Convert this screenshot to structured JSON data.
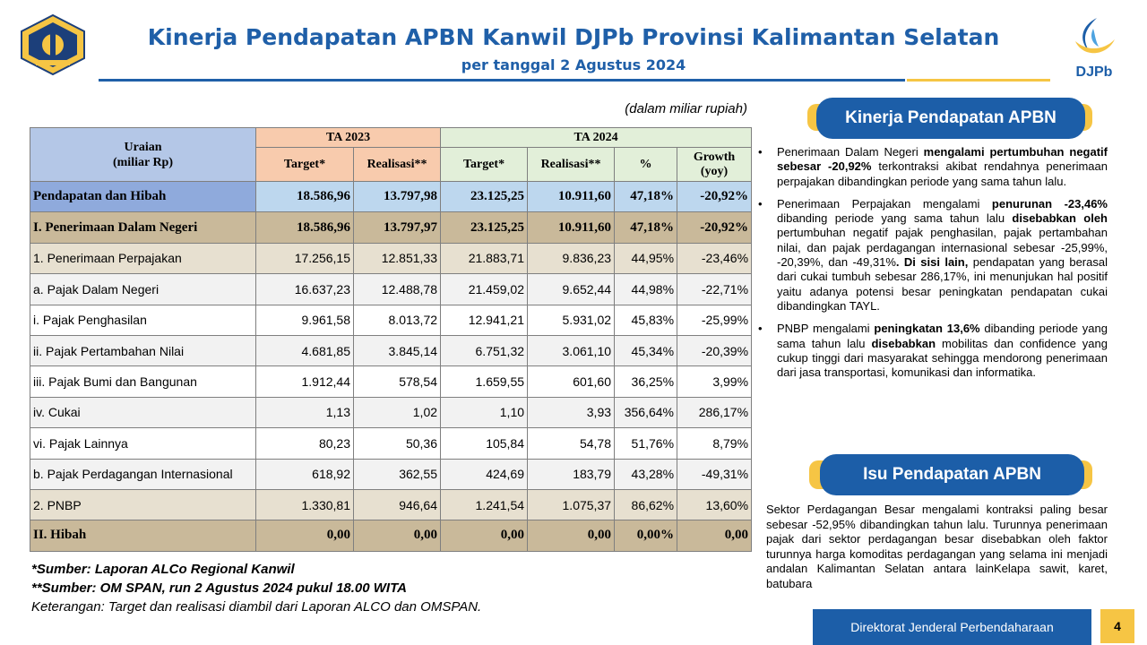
{
  "header": {
    "title": "Kinerja Pendapatan APBN Kanwil DJPb Provinsi Kalimantan Selatan",
    "subtitle": "per tanggal 2 Agustus 2024",
    "brand": "DJPb"
  },
  "table": {
    "unit_note": "(dalam miliar rupiah)",
    "col_uraian": "Uraian\n(miliar Rp)",
    "group_2023": "TA 2023",
    "group_2024": "TA 2024",
    "col_target_2023": "Target*",
    "col_realisasi_2023": "Realisasi**",
    "col_target_2024": "Target*",
    "col_realisasi_2024": "Realisasi**",
    "col_pct": "%",
    "col_growth": "Growth\n(yoy)",
    "rows": [
      {
        "label": "Pendapatan dan Hibah",
        "t23": "18.586,96",
        "r23": "13.797,98",
        "t24": "23.125,25",
        "r24": "10.911,60",
        "pct": "47,18%",
        "growth": "-20,92%"
      },
      {
        "label": "I. Penerimaan Dalam Negeri",
        "t23": "18.586,96",
        "r23": "13.797,97",
        "t24": "23.125,25",
        "r24": "10.911,60",
        "pct": "47,18%",
        "growth": "-20,92%"
      },
      {
        "label": "1. Penerimaan Perpajakan",
        "t23": "17.256,15",
        "r23": "12.851,33",
        "t24": "21.883,71",
        "r24": "9.836,23",
        "pct": "44,95%",
        "growth": "-23,46%"
      },
      {
        "label": "a. Pajak Dalam Negeri",
        "t23": "16.637,23",
        "r23": "12.488,78",
        "t24": "21.459,02",
        "r24": "9.652,44",
        "pct": "44,98%",
        "growth": "-22,71%"
      },
      {
        "label": "i. Pajak Penghasilan",
        "t23": "9.961,58",
        "r23": "8.013,72",
        "t24": "12.941,21",
        "r24": "5.931,02",
        "pct": "45,83%",
        "growth": "-25,99%"
      },
      {
        "label": "ii. Pajak Pertambahan Nilai",
        "t23": "4.681,85",
        "r23": "3.845,14",
        "t24": "6.751,32",
        "r24": "3.061,10",
        "pct": "45,34%",
        "growth": "-20,39%"
      },
      {
        "label": "iii. Pajak Bumi dan Bangunan",
        "t23": "1.912,44",
        "r23": "578,54",
        "t24": "1.659,55",
        "r24": "601,60",
        "pct": "36,25%",
        "growth": "3,99%"
      },
      {
        "label": "iv. Cukai",
        "t23": "1,13",
        "r23": "1,02",
        "t24": "1,10",
        "r24": "3,93",
        "pct": "356,64%",
        "growth": "286,17%"
      },
      {
        "label": "vi. Pajak Lainnya",
        "t23": "80,23",
        "r23": "50,36",
        "t24": "105,84",
        "r24": "54,78",
        "pct": "51,76%",
        "growth": "8,79%"
      },
      {
        "label": "b. Pajak Perdagangan Internasional",
        "t23": "618,92",
        "r23": "362,55",
        "t24": "424,69",
        "r24": "183,79",
        "pct": "43,28%",
        "growth": "-49,31%"
      },
      {
        "label": "2. PNBP",
        "t23": "1.330,81",
        "r23": "946,64",
        "t24": "1.241,54",
        "r24": "1.075,37",
        "pct": "86,62%",
        "growth": "13,60%"
      },
      {
        "label": "II. Hibah",
        "t23": "0,00",
        "r23": "0,00",
        "t24": "0,00",
        "r24": "0,00",
        "pct": "0,00%",
        "growth": "0,00"
      }
    ]
  },
  "notes": {
    "source1": "*Sumber: Laporan ALCo Regional Kanwil",
    "source2": "**Sumber: OM SPAN, run 2 Agustus 2024 pukul 18.00 WITA",
    "keterangan": "Keterangan: Target dan realisasi diambil dari Laporan ALCO dan OMSPAN."
  },
  "panel_kinerja": {
    "title": "Kinerja Pendapatan APBN",
    "b1_a": "Penerimaan Dalam Negeri ",
    "b1_b": "mengalami pertumbuhan negatif sebesar -20,92%",
    "b1_c": " terkontraksi akibat rendahnya penerimaan perpajakan dibandingkan periode yang sama tahun lalu.",
    "b2_a": "Penerimaan Perpajakan mengalami ",
    "b2_b": "penurunan -23,46%",
    "b2_c": " dibanding periode yang sama tahun lalu ",
    "b2_d": "disebabkan oleh",
    "b2_e": " pertumbuhan negatif pajak penghasilan, pajak pertambahan nilai, dan pajak perdagangan internasional sebesar -25,99%, -20,39%, dan -49,31%",
    "b2_f": ". Di sisi lain,",
    "b2_g": " pendapatan yang berasal dari cukai tumbuh sebesar 286,17%, ini menunjukan hal positif yaitu adanya potensi besar peningkatan pendapatan cukai dibandingkan TAYL.",
    "b3_a": "PNBP mengalami ",
    "b3_b": "peningkatan 13,6%",
    "b3_c": " dibanding periode yang sama tahun lalu ",
    "b3_d": "disebabkan",
    "b3_e": " mobilitas dan confidence yang cukup tinggi dari masyarakat sehingga mendorong penerimaan dari jasa transportasi, komunikasi dan informatika."
  },
  "panel_isu": {
    "title": "Isu Pendapatan APBN",
    "text": "Sektor Perdagangan Besar mengalami kontraksi paling besar sebesar -52,95% dibandingkan tahun lalu. Turunnya penerimaan pajak dari sektor perdagangan besar disebabkan oleh faktor turunnya harga komoditas perdagangan yang selama ini menjadi andalan Kalimantan Selatan antara lainKelapa sawit, karet, batubara"
  },
  "footer": {
    "org": "Direktorat Jenderal Perbendaharaan",
    "page": "4"
  },
  "colors": {
    "brand_blue": "#1c5ea8",
    "gold": "#f6c544",
    "header_uraian": "#b4c7e7",
    "header_2023": "#f8cbad",
    "header_2024": "#e2efd9"
  }
}
